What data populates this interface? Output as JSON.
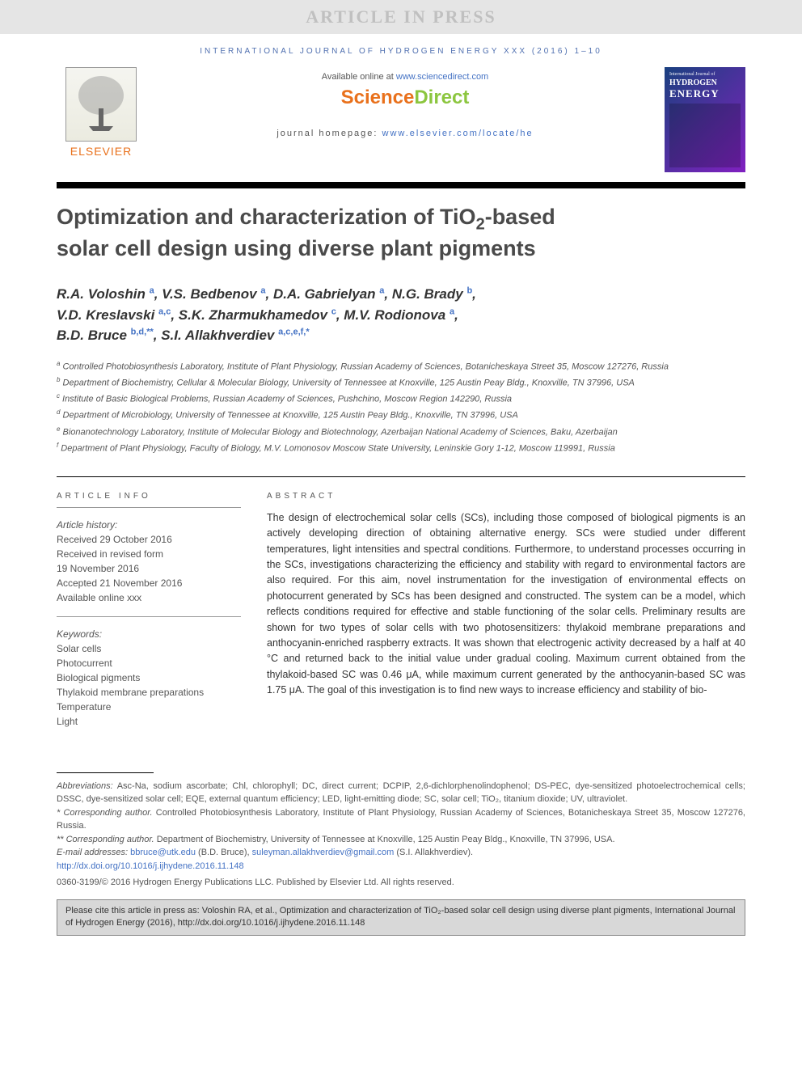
{
  "header": {
    "banner": "ARTICLE IN PRESS",
    "journal_ref": "INTERNATIONAL JOURNAL OF HYDROGEN ENERGY XXX (2016) 1–10",
    "available_prefix": "Available online at ",
    "available_link": "www.sciencedirect.com",
    "sd_logo_part1": "Science",
    "sd_logo_part2": "Direct",
    "homepage_prefix": "journal homepage: ",
    "homepage_link": "www.elsevier.com/locate/he",
    "elsevier_name": "ELSEVIER",
    "cover_top": "International Journal of",
    "cover_line1": "HYDROGEN",
    "cover_line2": "ENERGY"
  },
  "title": {
    "line1": "Optimization and characterization of TiO",
    "sub": "2",
    "line1b": "-based",
    "line2": "solar cell design using diverse plant pigments"
  },
  "authors": [
    {
      "name": "R.A. Voloshin",
      "sup": "a"
    },
    {
      "name": "V.S. Bedbenov",
      "sup": "a"
    },
    {
      "name": "D.A. Gabrielyan",
      "sup": "a"
    },
    {
      "name": "N.G. Brady",
      "sup": "b"
    },
    {
      "name": "V.D. Kreslavski",
      "sup": "a,c"
    },
    {
      "name": "S.K. Zharmukhamedov",
      "sup": "c"
    },
    {
      "name": "M.V. Rodionova",
      "sup": "a"
    },
    {
      "name": "B.D. Bruce",
      "sup": "b,d,**"
    },
    {
      "name": "S.I. Allakhverdiev",
      "sup": "a,c,e,f,*"
    }
  ],
  "affiliations": [
    {
      "label": "a",
      "text": "Controlled Photobiosynthesis Laboratory, Institute of Plant Physiology, Russian Academy of Sciences, Botanicheskaya Street 35, Moscow 127276, Russia"
    },
    {
      "label": "b",
      "text": "Department of Biochemistry, Cellular & Molecular Biology, University of Tennessee at Knoxville, 125 Austin Peay Bldg., Knoxville, TN 37996, USA"
    },
    {
      "label": "c",
      "text": "Institute of Basic Biological Problems, Russian Academy of Sciences, Pushchino, Moscow Region 142290, Russia"
    },
    {
      "label": "d",
      "text": "Department of Microbiology, University of Tennessee at Knoxville, 125 Austin Peay Bldg., Knoxville, TN 37996, USA"
    },
    {
      "label": "e",
      "text": "Bionanotechnology Laboratory, Institute of Molecular Biology and Biotechnology, Azerbaijan National Academy of Sciences, Baku, Azerbaijan"
    },
    {
      "label": "f",
      "text": "Department of Plant Physiology, Faculty of Biology, M.V. Lomonosov Moscow State University, Leninskie Gory 1-12, Moscow 119991, Russia"
    }
  ],
  "article_info": {
    "head": "ARTICLE INFO",
    "history_label": "Article history:",
    "history": [
      "Received 29 October 2016",
      "Received in revised form",
      "19 November 2016",
      "Accepted 21 November 2016",
      "Available online xxx"
    ],
    "keywords_label": "Keywords:",
    "keywords": [
      "Solar cells",
      "Photocurrent",
      "Biological pigments",
      "Thylakoid membrane preparations",
      "Temperature",
      "Light"
    ]
  },
  "abstract": {
    "head": "ABSTRACT",
    "text": "The design of electrochemical solar cells (SCs), including those composed of biological pigments is an actively developing direction of obtaining alternative energy. SCs were studied under different temperatures, light intensities and spectral conditions. Furthermore, to understand processes occurring in the SCs, investigations characterizing the efficiency and stability with regard to environmental factors are also required. For this aim, novel instrumentation for the investigation of environmental effects on photocurrent generated by SCs has been designed and constructed. The system can be a model, which reflects conditions required for effective and stable functioning of the solar cells. Preliminary results are shown for two types of solar cells with two photosensitizers: thylakoid membrane preparations and anthocyanin-enriched raspberry extracts. It was shown that electrogenic activity decreased by a half at 40 °C and returned back to the initial value under gradual cooling. Maximum current obtained from the thylakoid-based SC was 0.46 μA, while maximum current generated by the anthocyanin-based SC was 1.75 μA. The goal of this investigation is to find new ways to increase efficiency and stability of bio-"
  },
  "footnotes": {
    "abbrev_label": "Abbreviations:",
    "abbrev_text": " Asc-Na, sodium ascorbate; Chl, chlorophyll; DC, direct current; DCPIP, 2,6-dichlorphenolindophenol; DS-PEC, dye-sensitized photoelectrochemical cells; DSSC, dye-sensitized solar cell; EQE, external quantum efficiency; LED, light-emitting diode; SC, solar cell; TiO₂, titanium dioxide; UV, ultraviolet.",
    "corr1_label": "* Corresponding author.",
    "corr1_text": " Controlled Photobiosynthesis Laboratory, Institute of Plant Physiology, Russian Academy of Sciences, Botanicheskaya Street 35, Moscow 127276, Russia.",
    "corr2_label": "** Corresponding author.",
    "corr2_text": " Department of Biochemistry, University of Tennessee at Knoxville, 125 Austin Peay Bldg., Knoxville, TN 37996, USA.",
    "email_label": "E-mail addresses: ",
    "email1": "bbruce@utk.edu",
    "email1_name": " (B.D. Bruce), ",
    "email2": "suleyman.allakhverdiev@gmail.com",
    "email2_name": " (S.I. Allakhverdiev).",
    "doi": "http://dx.doi.org/10.1016/j.ijhydene.2016.11.148",
    "copyright": "0360-3199/© 2016 Hydrogen Energy Publications LLC. Published by Elsevier Ltd. All rights reserved."
  },
  "cite_box": "Please cite this article in press as: Voloshin RA, et al., Optimization and characterization of TiO₂-based solar cell design using diverse plant pigments, International Journal of Hydrogen Energy (2016), http://dx.doi.org/10.1016/j.ijhydene.2016.11.148",
  "colors": {
    "link": "#4472c4",
    "orange": "#e9711c",
    "green": "#8cc63f",
    "gray_bg": "#e5e5e5",
    "cite_bg": "#d8d8d8"
  }
}
